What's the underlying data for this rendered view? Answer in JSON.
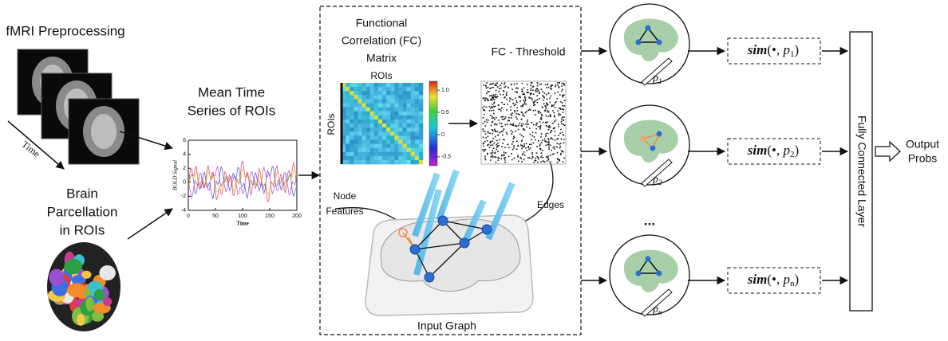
{
  "preprocessing": {
    "title": "fMRI Preprocessing",
    "time_label": "Time"
  },
  "parcellation": {
    "lines": [
      "Brain",
      "Parcellation",
      "in ROIs"
    ]
  },
  "time_series": {
    "title_lines": [
      "Mean Time",
      "Series of ROIs"
    ],
    "y_label": "BOLD Signal",
    "x_label": "Time",
    "ylim": [
      -4,
      6
    ],
    "yticks": [
      -4,
      -2,
      0,
      2,
      4,
      6
    ],
    "xlim": [
      0,
      200
    ],
    "xticks": [
      0,
      50,
      100,
      150,
      200
    ]
  },
  "fc_matrix": {
    "title_lines": [
      "Functional",
      "Correlation (FC)",
      "Matrix"
    ],
    "top_label": "ROIs",
    "side_label": "ROIs",
    "colorbar_lim": [
      -0.7,
      1.2
    ],
    "colorbar_ticks": [
      {
        "value": 1,
        "label": "1.0"
      },
      {
        "value": 0.5,
        "label": "0.5"
      },
      0,
      {
        "value": -0.5,
        "label": "-0.5"
      }
    ]
  },
  "threshold": {
    "title": "FC - Threshold"
  },
  "graph": {
    "node_features": [
      "Node",
      "Features"
    ],
    "edges": "Edges",
    "title": "Input Graph"
  },
  "prototypes": [
    {
      "symbol": "p",
      "index": "1"
    },
    {
      "symbol": "p",
      "index": "2"
    },
    {
      "symbol": "p",
      "index": "n"
    }
  ],
  "ellipsis": "...",
  "similarity": {
    "func": "sim",
    "open": "(•, ",
    "close": ")"
  },
  "classifier": {
    "title": "Fully Connected Layer"
  },
  "output": {
    "lines": [
      "Output",
      "Probs"
    ]
  }
}
